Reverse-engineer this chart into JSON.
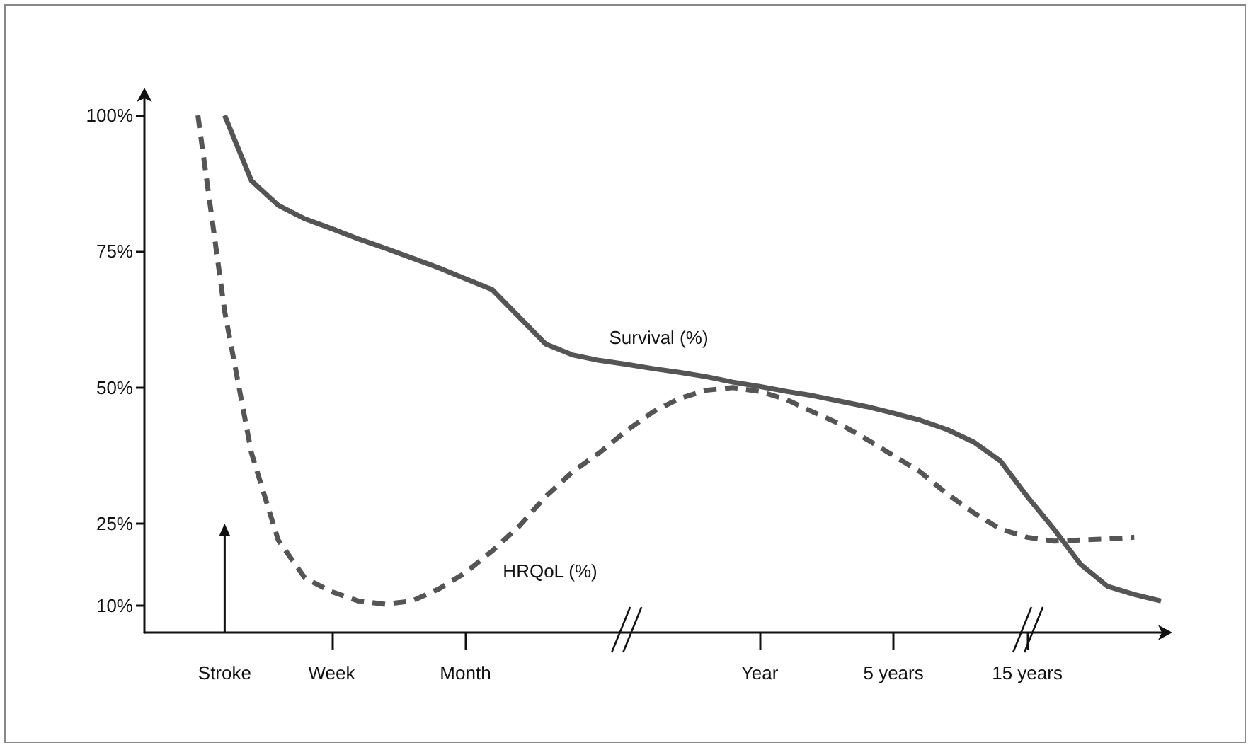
{
  "chart_data": {
    "type": "line",
    "marker": "none",
    "categories": [
      null,
      null,
      null,
      "Stroke",
      null,
      null,
      null,
      "Week",
      null,
      null,
      null,
      null,
      "Month",
      null,
      null,
      null,
      null,
      null,
      null,
      null,
      null,
      null,
      null,
      "Year",
      null,
      null,
      null,
      null,
      "5 years",
      null,
      null,
      null,
      null,
      "15 years",
      null,
      null,
      null,
      null,
      null
    ],
    "ylim": [
      5,
      103
    ],
    "yticks": [
      {
        "value": 10,
        "label": "10%"
      },
      {
        "value": 25,
        "label": "25%"
      },
      {
        "value": 50,
        "label": "50%"
      },
      {
        "value": 75,
        "label": "75%"
      },
      {
        "value": 100,
        "label": "100%"
      }
    ],
    "series": [
      {
        "name": "Survival (%)",
        "color": "#555555",
        "line_style": "solid",
        "values": [
          null,
          null,
          null,
          100,
          88,
          83.5,
          81,
          79.2,
          77.3,
          75.6,
          73.8,
          72,
          70,
          68,
          63,
          58,
          56,
          55,
          54.3,
          53.5,
          52.8,
          52,
          51,
          50.2,
          49.3,
          48.5,
          47.5,
          46.5,
          45.3,
          44,
          42.3,
          40,
          36.5,
          30,
          24,
          17.5,
          13.5,
          12,
          10.8
        ]
      },
      {
        "name": "HRQoL (%)",
        "color": "#555555",
        "line_style": "dashed",
        "values": [
          null,
          null,
          100,
          64,
          38,
          22,
          15,
          12.5,
          10.8,
          10.2,
          10.8,
          13,
          16,
          20,
          24.5,
          30,
          34.5,
          38,
          42,
          45.5,
          48,
          49.5,
          50,
          49.3,
          47.8,
          45.5,
          43.3,
          40.5,
          37.5,
          34.5,
          30.5,
          27,
          24,
          22.5,
          21.8,
          22,
          22.2,
          22.5,
          null
        ]
      }
    ]
  }
}
